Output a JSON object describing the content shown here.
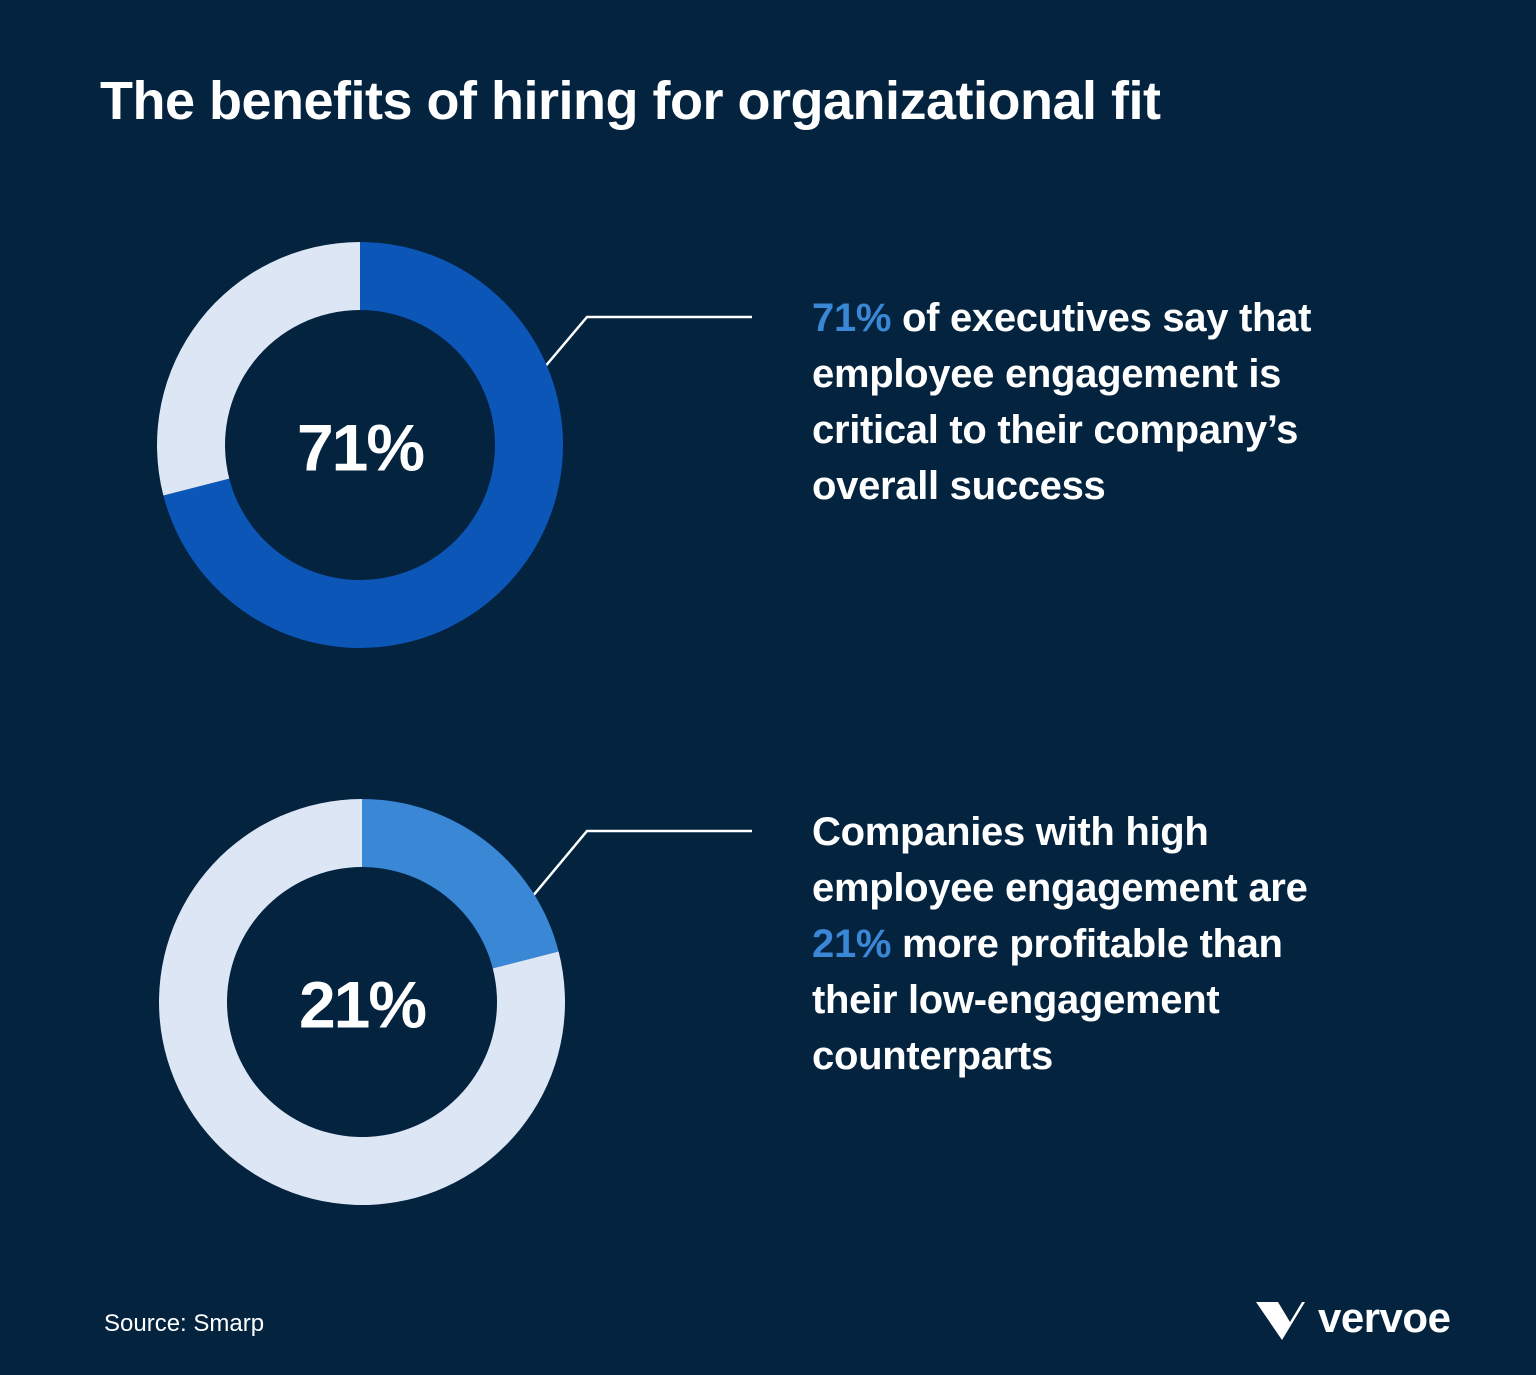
{
  "title": "The benefits of hiring for organizational fit",
  "chart_data": [
    {
      "type": "donut",
      "values": [
        71,
        29
      ],
      "value_labels": [
        "71%",
        null
      ],
      "colors": [
        "#0c56b8",
        "#dde6f4"
      ],
      "description": [
        {
          "text": "71%",
          "highlight": true
        },
        {
          "text": " of executives say that employee engagement is critical to their company’s overall success",
          "highlight": false
        }
      ]
    },
    {
      "type": "donut",
      "values": [
        21,
        79
      ],
      "value_labels": [
        "21%",
        null
      ],
      "colors": [
        "#3a87d6",
        "#dde6f4"
      ],
      "description": [
        {
          "text": "Companies with high employee engagement are ",
          "highlight": false
        },
        {
          "text": "21%",
          "highlight": true
        },
        {
          "text": " more profitable than their low-engagement counterparts",
          "highlight": false
        }
      ]
    }
  ],
  "highlight_color": "#3a87d6",
  "source": "Source: Smarp",
  "logo": "vervoe"
}
